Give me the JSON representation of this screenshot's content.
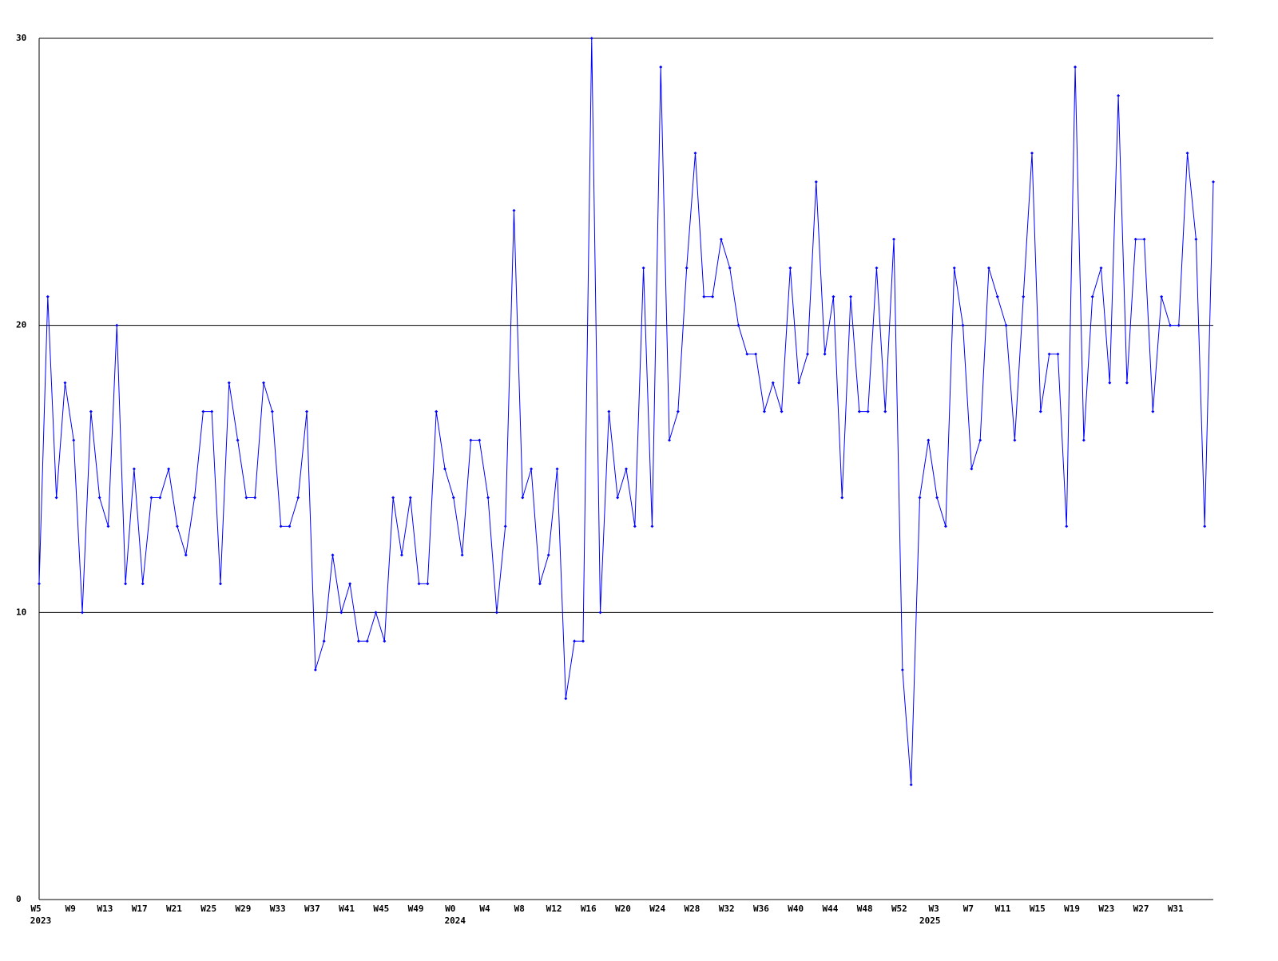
{
  "chart_data": {
    "type": "line",
    "categories": [
      "W5",
      null,
      null,
      null,
      "W9",
      null,
      null,
      null,
      "W13",
      null,
      null,
      null,
      "W17",
      null,
      null,
      null,
      "W21",
      null,
      null,
      null,
      "W25",
      null,
      null,
      null,
      "W29",
      null,
      null,
      null,
      "W33",
      null,
      null,
      null,
      "W37",
      null,
      null,
      null,
      "W41",
      null,
      null,
      null,
      "W45",
      null,
      null,
      null,
      "W49",
      null,
      null,
      null,
      "W0",
      null,
      null,
      null,
      "W4",
      null,
      null,
      null,
      "W8",
      null,
      null,
      null,
      "W12",
      null,
      null,
      null,
      "W16",
      null,
      null,
      null,
      "W20",
      null,
      null,
      null,
      "W24",
      null,
      null,
      null,
      "W28",
      null,
      null,
      null,
      "W32",
      null,
      null,
      null,
      "W36",
      null,
      null,
      null,
      "W40",
      null,
      null,
      null,
      "W44",
      null,
      null,
      null,
      "W48",
      null,
      null,
      null,
      "W52",
      null,
      null,
      null,
      "W3",
      null,
      null,
      null,
      "W7",
      null,
      null,
      null,
      "W11",
      null,
      null,
      null,
      "W15",
      null,
      null,
      null,
      "W19",
      null,
      null,
      null,
      "W23",
      null,
      null,
      null,
      "W27",
      null,
      null,
      null,
      "W31",
      null,
      null,
      null,
      null
    ],
    "category_groups": [
      "2023",
      null,
      null,
      null,
      null,
      null,
      null,
      null,
      null,
      null,
      null,
      null,
      null,
      null,
      null,
      null,
      null,
      null,
      null,
      null,
      null,
      null,
      null,
      null,
      null,
      null,
      null,
      null,
      null,
      null,
      null,
      null,
      null,
      null,
      null,
      null,
      null,
      null,
      null,
      null,
      null,
      null,
      null,
      null,
      null,
      null,
      null,
      null,
      "2024",
      null,
      null,
      null,
      null,
      null,
      null,
      null,
      null,
      null,
      null,
      null,
      null,
      null,
      null,
      null,
      null,
      null,
      null,
      null,
      null,
      null,
      null,
      null,
      null,
      null,
      null,
      null,
      null,
      null,
      null,
      null,
      null,
      null,
      null,
      null,
      null,
      null,
      null,
      null,
      null,
      null,
      null,
      null,
      null,
      null,
      null,
      null,
      null,
      null,
      null,
      null,
      null,
      null,
      null,
      "2025",
      null,
      null,
      null,
      null,
      null,
      null,
      null,
      null,
      null,
      null,
      null,
      null,
      null,
      null,
      null,
      null,
      null,
      null,
      null,
      null,
      null,
      null,
      null,
      null,
      null,
      null,
      null,
      null,
      null,
      null,
      null,
      null,
      null,
      null,
      null
    ],
    "values": [
      11,
      21,
      14,
      18,
      16,
      10,
      17,
      14,
      13,
      20,
      11,
      15,
      11,
      14,
      14,
      15,
      13,
      12,
      14,
      17,
      17,
      11,
      18,
      16,
      14,
      14,
      18,
      17,
      13,
      13,
      14,
      17,
      8,
      9,
      12,
      10,
      11,
      9,
      9,
      10,
      9,
      14,
      12,
      14,
      11,
      11,
      17,
      15,
      14,
      12,
      16,
      16,
      14,
      10,
      13,
      24,
      14,
      15,
      11,
      12,
      15,
      7,
      9,
      9,
      30,
      10,
      17,
      14,
      15,
      13,
      22,
      13,
      29,
      16,
      17,
      22,
      26,
      21,
      21,
      23,
      22,
      20,
      19,
      19,
      17,
      18,
      17,
      22,
      18,
      19,
      25,
      19,
      21,
      14,
      21,
      17,
      17,
      22,
      17,
      23,
      8,
      4,
      14,
      16,
      14,
      13,
      22,
      20,
      15,
      16,
      22,
      21,
      20,
      16,
      21,
      26,
      17,
      19,
      19,
      13,
      29,
      16,
      21,
      22,
      18,
      28,
      18,
      23,
      23,
      17,
      21,
      20,
      20,
      26,
      23,
      13,
      25
    ],
    "color": "#0000ff",
    "ylim": [
      0,
      30
    ],
    "yticks": [
      0,
      10,
      20,
      30
    ],
    "grid": true
  }
}
